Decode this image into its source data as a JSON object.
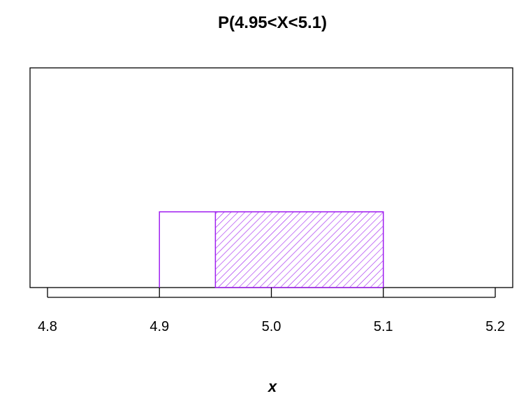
{
  "chart_data": {
    "type": "area",
    "title": "P(4.95<X<5.1)",
    "xlabel": "x",
    "ylabel": "",
    "xlim": [
      4.8,
      5.2
    ],
    "x_ticks": [
      4.8,
      4.9,
      5.0,
      5.1,
      5.2
    ],
    "x_tick_labels": [
      "4.8",
      "4.9",
      "5.0",
      "5.1",
      "5.2"
    ],
    "distribution": {
      "name": "uniform",
      "min": 4.9,
      "max": 5.1
    },
    "shaded_region": {
      "from": 4.95,
      "to": 5.1
    },
    "grid": false,
    "y_axis_shown": false,
    "colors": {
      "density": "#a020f0",
      "axis": "#000000"
    }
  }
}
